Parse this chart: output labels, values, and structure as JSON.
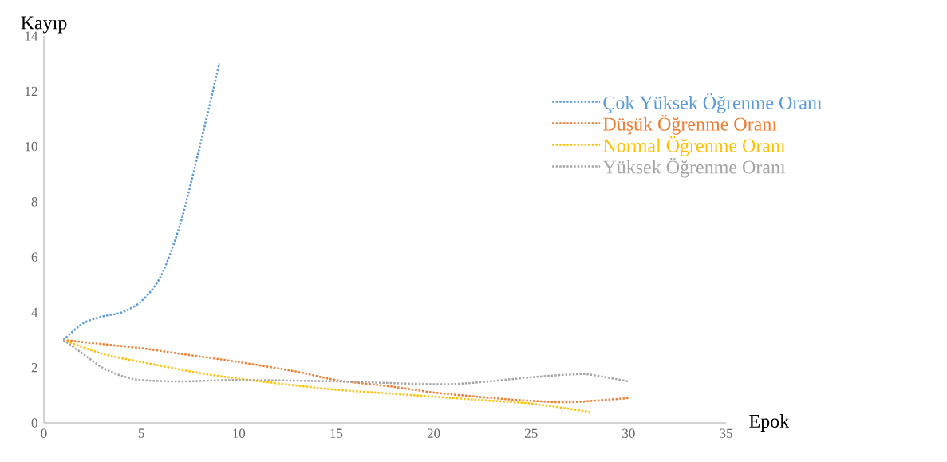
{
  "chart_data": {
    "type": "line",
    "xlabel": "Epok",
    "ylabel": "Kayıp",
    "xlim": [
      0,
      35
    ],
    "xticks": [
      0,
      5,
      10,
      15,
      20,
      25,
      30,
      35
    ],
    "ylim": [
      0,
      14
    ],
    "yticks": [
      0,
      2,
      4,
      6,
      8,
      10,
      12,
      14
    ],
    "grid": false,
    "legend": "top right",
    "marker": "none",
    "line_style": "dotted",
    "series": [
      {
        "name": "Çok Yüksek Öğrenme Oranı",
        "color": "#5b9bd5",
        "x": [
          1,
          2,
          3,
          4,
          5,
          6,
          7,
          8,
          9
        ],
        "values": [
          3.0,
          3.6,
          3.85,
          4.0,
          4.4,
          5.3,
          7.2,
          10.0,
          13.0
        ]
      },
      {
        "name": "Düşük Öğrenme Oranı",
        "color": "#ed7d31",
        "x": [
          1,
          3,
          5,
          7,
          10,
          13,
          15,
          18,
          20,
          23,
          25,
          27,
          30
        ],
        "values": [
          3.0,
          2.85,
          2.7,
          2.5,
          2.2,
          1.85,
          1.55,
          1.3,
          1.1,
          0.9,
          0.8,
          0.75,
          0.9
        ]
      },
      {
        "name": "Normal Öğrenme Oranı",
        "color": "#ffc000",
        "x": [
          1,
          3,
          5,
          8,
          10,
          13,
          15,
          18,
          20,
          23,
          25,
          28
        ],
        "values": [
          3.0,
          2.5,
          2.2,
          1.8,
          1.6,
          1.35,
          1.2,
          1.05,
          0.95,
          0.8,
          0.7,
          0.4
        ]
      },
      {
        "name": "Yüksek Öğrenme Oranı",
        "color": "#a5a5a5",
        "x": [
          1,
          2,
          3,
          4,
          5,
          7,
          10,
          15,
          20,
          22,
          25,
          27,
          28,
          30
        ],
        "values": [
          3.0,
          2.5,
          2.0,
          1.7,
          1.55,
          1.5,
          1.55,
          1.5,
          1.4,
          1.45,
          1.65,
          1.75,
          1.75,
          1.5
        ]
      }
    ]
  }
}
